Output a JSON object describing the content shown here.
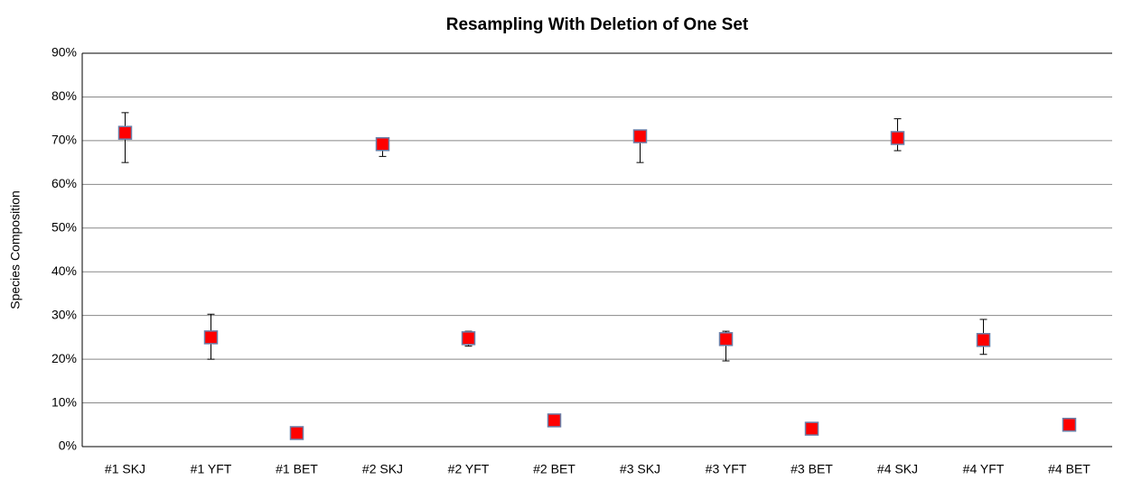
{
  "chart_data": {
    "type": "errorbar",
    "title": "Resampling With Deletion of One Set",
    "y_label": "Species Composition",
    "categories": [
      "#1 SKJ",
      "#1 YFT",
      "#1 BET",
      "#2 SKJ",
      "#2 YFT",
      "#2 BET",
      "#3 SKJ",
      "#3 YFT",
      "#3 BET",
      "#4 SKJ",
      "#4 YFT",
      "#4 BET"
    ],
    "values": [
      71.8,
      25.0,
      3.1,
      69.2,
      24.8,
      6.0,
      71.0,
      24.6,
      4.1,
      70.6,
      24.4,
      5.0
    ],
    "error_plus": [
      4.6,
      5.3,
      0.4,
      1.2,
      1.6,
      0.3,
      1.0,
      1.8,
      0.5,
      4.4,
      4.7,
      0.3
    ],
    "error_minus": [
      6.8,
      5.0,
      0.4,
      2.8,
      1.8,
      0.3,
      6.0,
      5.0,
      1.3,
      2.9,
      3.3,
      0.3
    ],
    "color": "#ff0000",
    "ylim": [
      0,
      90
    ],
    "yticks": [
      {
        "value": 0,
        "label": "0%"
      },
      {
        "value": 10,
        "label": "10%"
      },
      {
        "value": 20,
        "label": "20%"
      },
      {
        "value": 30,
        "label": "30%"
      },
      {
        "value": 40,
        "label": "40%"
      },
      {
        "value": 50,
        "label": "50%"
      },
      {
        "value": 60,
        "label": "60%"
      },
      {
        "value": 70,
        "label": "70%"
      },
      {
        "value": 80,
        "label": "80%"
      },
      {
        "value": 90,
        "label": "90%"
      }
    ],
    "grid": true
  }
}
